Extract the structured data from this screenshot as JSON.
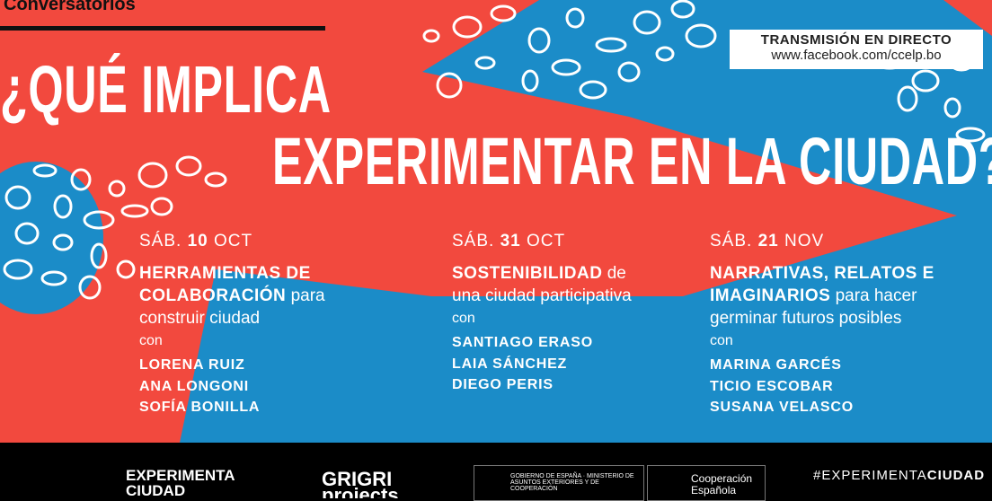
{
  "colors": {
    "blue": "#1b8cc8",
    "red": "#f2493e",
    "black": "#000000"
  },
  "header": {
    "series": "Conversatorios",
    "title_line1": "¿QUÉ IMPLICA",
    "title_line2": "EXPERIMENTAR EN LA CIUDAD?"
  },
  "live": {
    "label": "TRANSMISIÓN EN DIRECTO",
    "url": "www.facebook.com/ccelp.bo"
  },
  "sessions": [
    {
      "day": "SÁB.",
      "date": "10",
      "month": "OCT",
      "title_bold": "HERRAMIENTAS DE COLABORACIÓN",
      "title_rest": "para construir ciudad",
      "con": "con",
      "speakers": [
        "LORENA RUIZ",
        "ANA LONGONI",
        "SOFÍA BONILLA"
      ]
    },
    {
      "day": "SÁB.",
      "date": "31",
      "month": "OCT",
      "title_bold": "SOSTENIBILIDAD",
      "title_rest": "de una ciudad participativa",
      "con": "con",
      "speakers": [
        "SANTIAGO ERASO",
        "LAIA SÁNCHEZ",
        "DIEGO PERIS"
      ]
    },
    {
      "day": "SÁB.",
      "date": "21",
      "month": "NOV",
      "title_bold": "NARRATIVAS, RELATOS E IMAGINARIOS",
      "title_rest": "para hacer germinar futuros posibles",
      "con": "con",
      "speakers": [
        "MARINA GARCÉS",
        "TICIO ESCOBAR",
        "SUSANA VELASCO"
      ]
    }
  ],
  "footer": {
    "logo1": "EXPERIMENTA CIUDAD",
    "logo2": "GRIGRI projects",
    "logo3": "GOBIERNO DE ESPAÑA · MINISTERIO DE ASUNTOS EXTERIORES Y DE COOPERACIÓN",
    "logo4": "Cooperación Española",
    "hashtag_a": "#EXPERIMENTA",
    "hashtag_b": "CIUDAD"
  }
}
